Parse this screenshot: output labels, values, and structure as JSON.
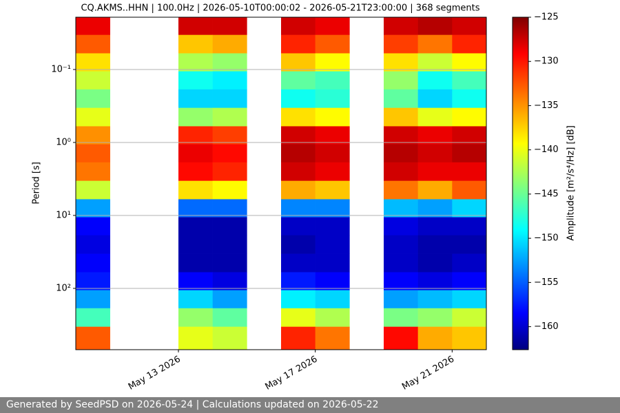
{
  "chart_data": {
    "type": "heatmap",
    "title": "CQ.AKMS..HHN | 100.0Hz | 2026-05-10T00:00:02 - 2026-05-21T23:00:00 | 368 segments",
    "y_label": "Period [s]",
    "colorbar_label": "Amplitude [m²/s⁴/Hz] [dB]",
    "colormap": "jet",
    "log_y": true,
    "invert_y": true,
    "grid": true,
    "x": [
      "2026-05-10",
      "2026-05-11",
      "2026-05-12",
      "2026-05-13",
      "2026-05-14",
      "2026-05-15",
      "2026-05-16",
      "2026-05-17",
      "2026-05-18",
      "2026-05-19",
      "2026-05-20",
      "2026-05-21"
    ],
    "xlim": [
      "2026-05-10",
      "2026-05-22"
    ],
    "xticks": [
      {
        "value": "2026-05-13",
        "label": "May 13 2026"
      },
      {
        "value": "2026-05-17",
        "label": "May 17 2026"
      },
      {
        "value": "2026-05-21",
        "label": "May 21 2026"
      }
    ],
    "y": [
      0.025,
      0.045,
      0.08,
      0.14,
      0.25,
      0.45,
      0.8,
      1.4,
      2.5,
      4.5,
      8,
      14,
      25,
      45,
      80,
      140,
      250,
      450
    ],
    "ylim": [
      0.0192,
      692
    ],
    "yticks": [
      {
        "value": 0.1,
        "label": "10⁻¹"
      },
      {
        "value": 1,
        "label": "10⁰"
      },
      {
        "value": 10,
        "label": "10¹"
      },
      {
        "value": 100,
        "label": "10²"
      }
    ],
    "zlim": [
      -162.6,
      -125
    ],
    "zticks": [
      {
        "value": -125,
        "label": "−125"
      },
      {
        "value": -130,
        "label": "−130"
      },
      {
        "value": -135,
        "label": "−135"
      },
      {
        "value": -140,
        "label": "−140"
      },
      {
        "value": -145,
        "label": "−145"
      },
      {
        "value": -150,
        "label": "−150"
      },
      {
        "value": -155,
        "label": "−155"
      },
      {
        "value": -160,
        "label": "−160"
      }
    ],
    "z": [
      [
        -129,
        null,
        null,
        -128,
        -128,
        null,
        -128,
        -129,
        null,
        -128,
        -127,
        -128
      ],
      [
        -133,
        null,
        null,
        -137,
        -136,
        null,
        -131,
        -133,
        null,
        -132,
        -134,
        -131
      ],
      [
        -138,
        null,
        null,
        -142,
        -143,
        null,
        -137,
        -139,
        null,
        -138,
        -141,
        -139
      ],
      [
        -141,
        null,
        null,
        -148,
        -149,
        null,
        -145,
        -146,
        null,
        -143,
        -148,
        -146
      ],
      [
        -144,
        null,
        null,
        -150,
        -150,
        null,
        -148,
        -147,
        null,
        -145,
        -150,
        -148
      ],
      [
        -140,
        null,
        null,
        -143,
        -142,
        null,
        -138,
        -139,
        null,
        -137,
        -140,
        -139
      ],
      [
        -135,
        null,
        null,
        -131,
        -132,
        null,
        -128,
        -129,
        null,
        -128,
        -129,
        -128
      ],
      [
        -133,
        null,
        null,
        -129,
        -130,
        null,
        -127,
        -128,
        null,
        -127,
        -128,
        -127
      ],
      [
        -134,
        null,
        null,
        -130,
        -131,
        null,
        -128,
        -129,
        null,
        -128,
        -129,
        -129
      ],
      [
        -141,
        null,
        null,
        -138,
        -139,
        null,
        -136,
        -137,
        null,
        -134,
        -136,
        -133
      ],
      [
        -152,
        null,
        null,
        -154,
        -154,
        null,
        -153,
        -153,
        null,
        -151,
        -152,
        -150
      ],
      [
        -158,
        null,
        null,
        -161,
        -161,
        null,
        -160,
        -160,
        null,
        -159,
        -160,
        -160
      ],
      [
        -159,
        null,
        null,
        -161,
        -161,
        null,
        -161,
        -160,
        null,
        -160,
        -161,
        -161
      ],
      [
        -158,
        null,
        null,
        -161,
        -161,
        null,
        -160,
        -160,
        null,
        -160,
        -161,
        -160
      ],
      [
        -157,
        null,
        null,
        -158,
        -159,
        null,
        -157,
        -158,
        null,
        -158,
        -159,
        -158
      ],
      [
        -152,
        null,
        null,
        -150,
        -152,
        null,
        -149,
        -150,
        null,
        -152,
        -151,
        -150
      ],
      [
        -146,
        null,
        null,
        -143,
        -145,
        null,
        -140,
        -142,
        null,
        -144,
        -143,
        -141
      ],
      [
        -133,
        null,
        null,
        -140,
        -141,
        null,
        -131,
        -134,
        null,
        -130,
        -136,
        -137
      ]
    ]
  },
  "footer": "Generated by SeedPSD on 2026-05-24 | Calculations updated on 2026-05-22"
}
